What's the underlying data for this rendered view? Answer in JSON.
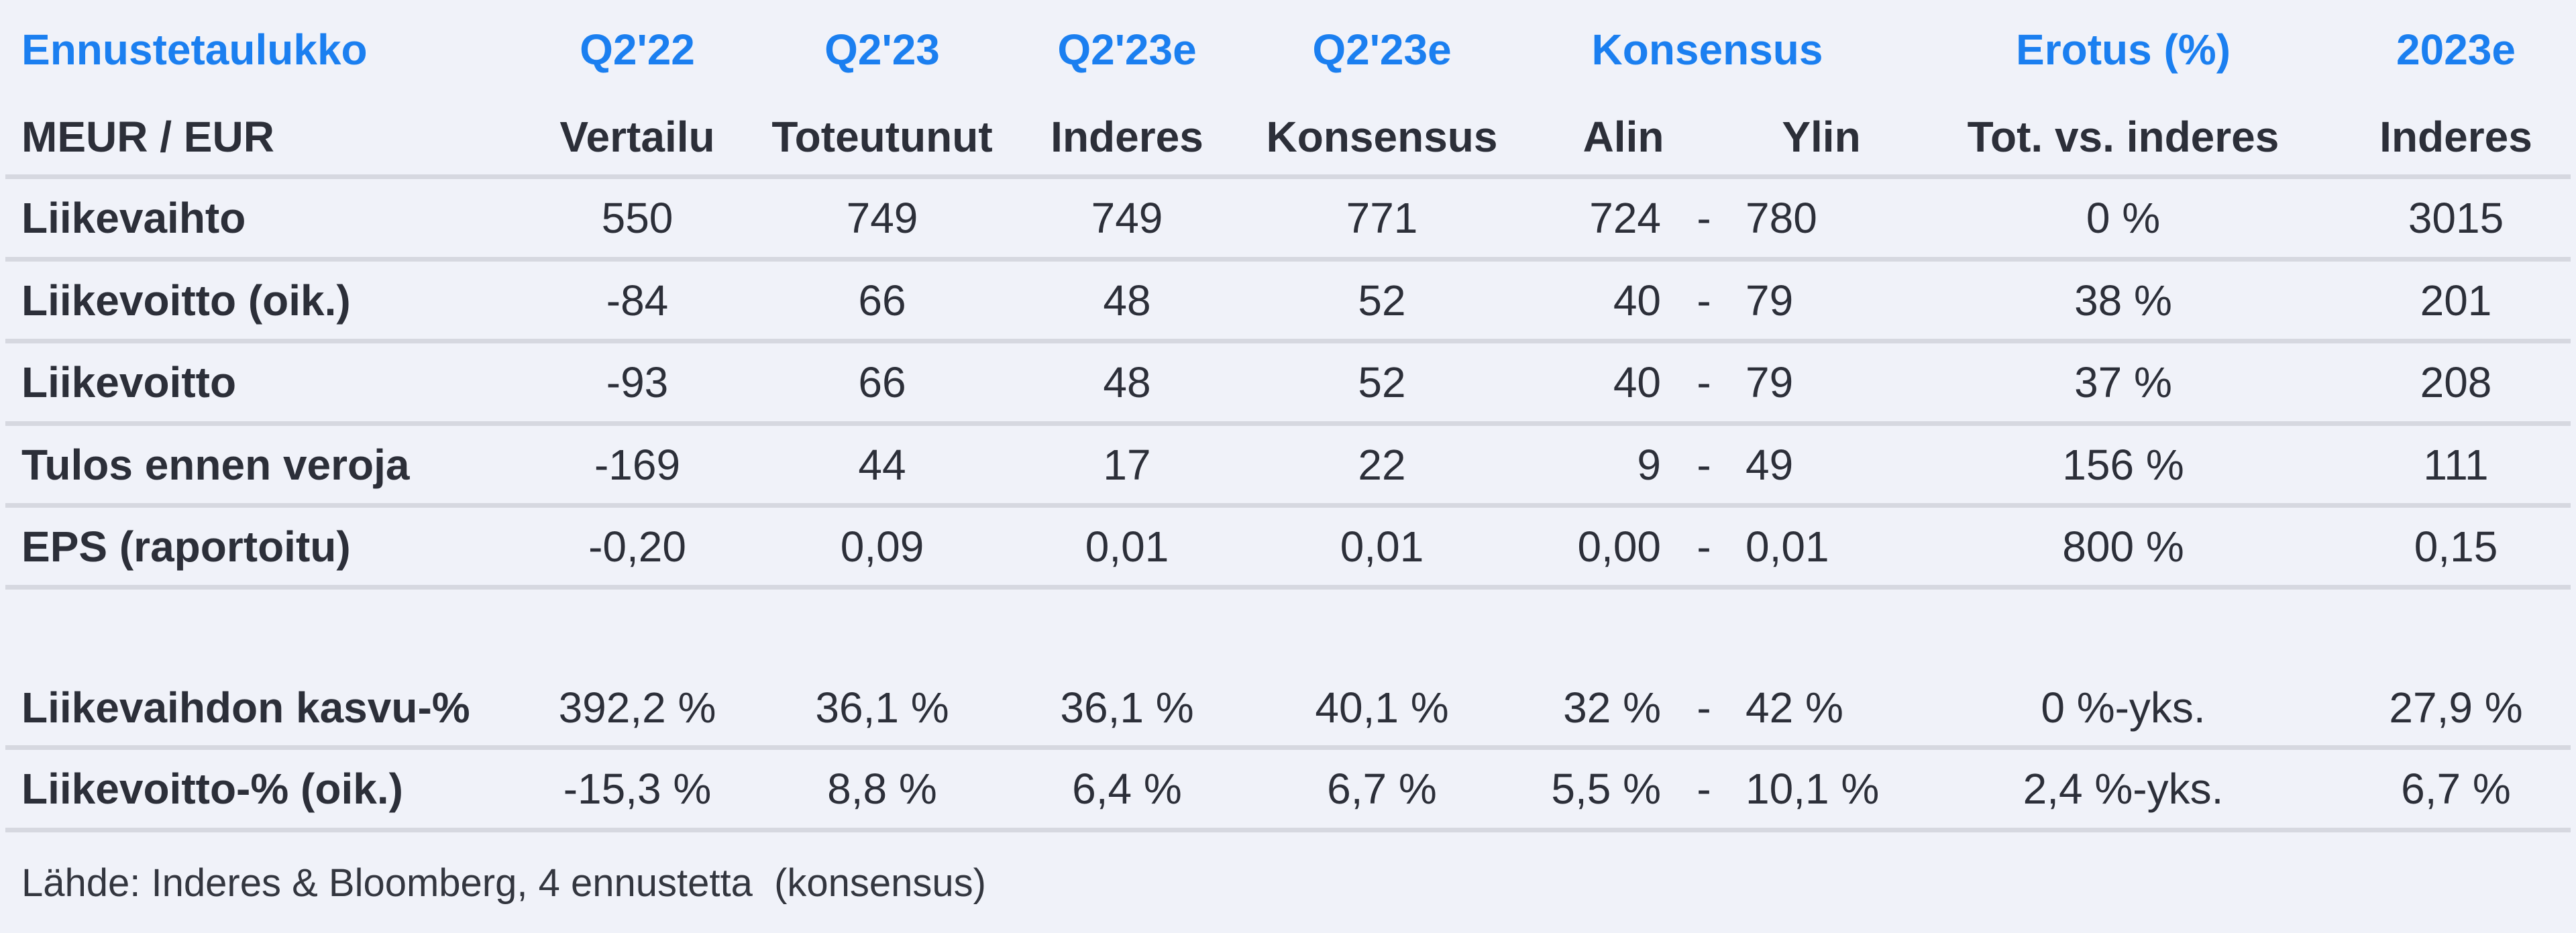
{
  "page": {
    "background_color": "#f0f2f9",
    "accent_blue": "#1b7ff0",
    "text_color": "#2c2f39",
    "separator_color": "#d6d8e0"
  },
  "table": {
    "header_row1": {
      "title": "Ennustetaulukko",
      "q2_22": "Q2'22",
      "q2_23": "Q2'23",
      "q2_23e_inderes": "Q2'23e",
      "q2_23e_konsensus": "Q2'23e",
      "konsensus": "Konsensus",
      "erotus": "Erotus (%)",
      "y2023e": "2023e"
    },
    "header_row2": {
      "label": "MEUR / EUR",
      "vertailu": "Vertailu",
      "toteutunut": "Toteutunut",
      "inderes": "Inderes",
      "konsensus": "Konsensus",
      "alin": "Alin",
      "ylin": "Ylin",
      "erotus": "Tot. vs. inderes",
      "y2023e": "Inderes"
    },
    "rows": [
      {
        "label": "Liikevaihto",
        "vertailu": "550",
        "toteutunut": "749",
        "inderes": "749",
        "konsensus": "771",
        "alin": "724",
        "dash": "-",
        "ylin": "780",
        "erotus": "0 %",
        "y2023e": "3015"
      },
      {
        "label": "Liikevoitto (oik.)",
        "vertailu": "-84",
        "toteutunut": "66",
        "inderes": "48",
        "konsensus": "52",
        "alin": "40",
        "dash": "-",
        "ylin": "79",
        "erotus": "38 %",
        "y2023e": "201"
      },
      {
        "label": "Liikevoitto",
        "vertailu": "-93",
        "toteutunut": "66",
        "inderes": "48",
        "konsensus": "52",
        "alin": "40",
        "dash": "-",
        "ylin": "79",
        "erotus": "37 %",
        "y2023e": "208"
      },
      {
        "label": "Tulos ennen veroja",
        "vertailu": "-169",
        "toteutunut": "44",
        "inderes": "17",
        "konsensus": "22",
        "alin": "9",
        "dash": "-",
        "ylin": "49",
        "erotus": "156 %",
        "y2023e": "111"
      },
      {
        "label": "EPS (raportoitu)",
        "vertailu": "-0,20",
        "toteutunut": "0,09",
        "inderes": "0,01",
        "konsensus": "0,01",
        "alin": "0,00",
        "dash": "-",
        "ylin": "0,01",
        "erotus": "800 %",
        "y2023e": "0,15"
      },
      {
        "label": "Liikevaihdon kasvu-%",
        "vertailu": "392,2 %",
        "toteutunut": "36,1 %",
        "inderes": "36,1 %",
        "konsensus": "40,1 %",
        "alin": "32 %",
        "dash": "-",
        "ylin": "42 %",
        "erotus": "0 %-yks.",
        "y2023e": "27,9 %"
      },
      {
        "label": "Liikevoitto-% (oik.)",
        "vertailu": "-15,3 %",
        "toteutunut": "8,8 %",
        "inderes": "6,4 %",
        "konsensus": "6,7 %",
        "alin": "5,5 %",
        "dash": "-",
        "ylin": "10,1 %",
        "erotus": "2,4 %-yks.",
        "y2023e": "6,7 %"
      }
    ],
    "footer": "Lähde: Inderes & Bloomberg, 4 ennustetta  (konsensus)"
  }
}
